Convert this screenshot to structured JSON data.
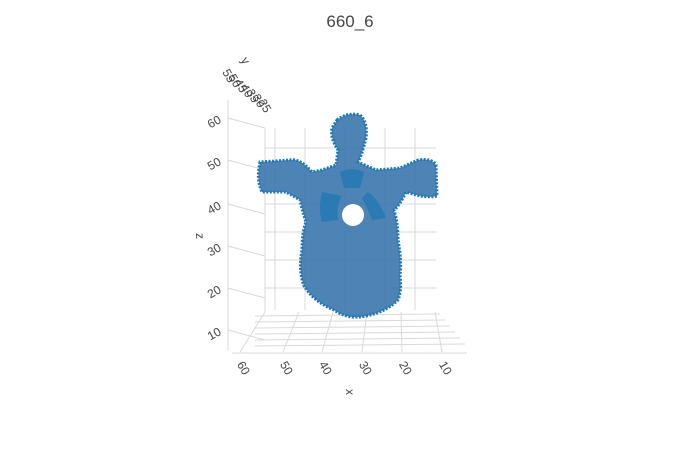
{
  "chart_data": {
    "type": "mesh3d",
    "title": "660_6",
    "mesh_color": "#2f6fa8",
    "mesh_edge_color": "#1f77b4",
    "x_axis": {
      "label": "x",
      "ticks": [
        "60",
        "50",
        "40",
        "30",
        "20",
        "10"
      ]
    },
    "y_axis": {
      "label": "y",
      "ticks": [
        "55",
        "50",
        "45",
        "40",
        "35",
        "30",
        "25"
      ]
    },
    "z_axis": {
      "label": "z",
      "ticks": [
        "60",
        "50",
        "40",
        "30",
        "20",
        "10"
      ]
    },
    "grid": true
  }
}
